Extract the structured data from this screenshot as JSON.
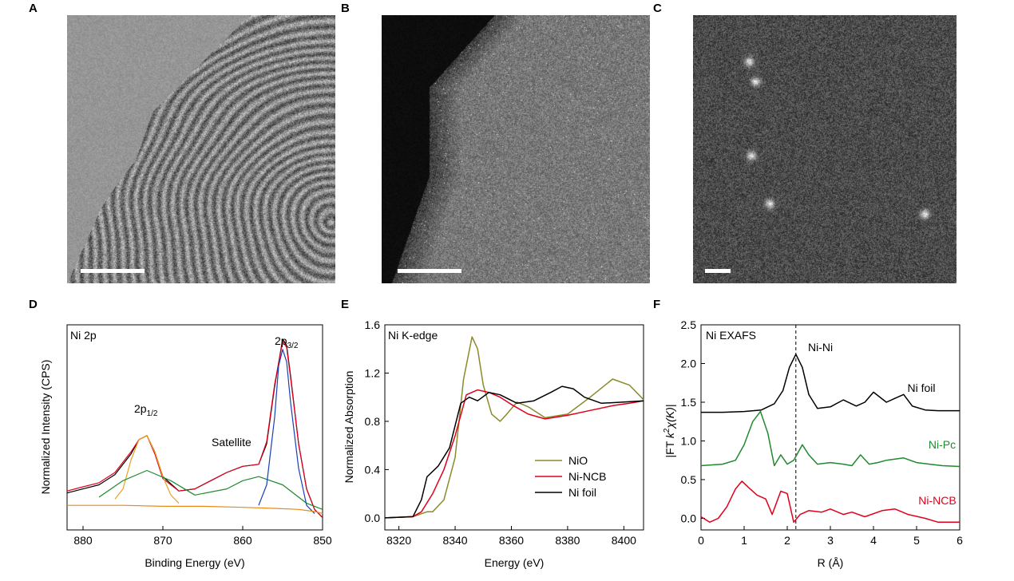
{
  "panels": {
    "A": {
      "letter": "A"
    },
    "B": {
      "letter": "B"
    },
    "C": {
      "letter": "C"
    },
    "D": {
      "letter": "D"
    },
    "E": {
      "letter": "E"
    },
    "F": {
      "letter": "F"
    }
  },
  "chart_data": [
    {
      "panel": "D",
      "type": "line",
      "xlabel": "Binding Energy (eV)",
      "ylabel": "Normalized Intensity (CPS)",
      "x_reversed": true,
      "xlim": [
        882,
        850
      ],
      "ylim": [
        0,
        1
      ],
      "xticks": [
        880,
        870,
        860,
        850
      ],
      "annotations": {
        "corner": "Ni 2p",
        "peak_half": "2p",
        "peak_half_sub": "1/2",
        "satellite": "Satellite",
        "peak_three_half": "2p",
        "peak_three_half_sub": "3/2"
      },
      "series": [
        {
          "role": "raw",
          "color": "#000000",
          "x": [
            882,
            880,
            878,
            876,
            874,
            873,
            872,
            871,
            870,
            868,
            866,
            864,
            862,
            860,
            858,
            857,
            856,
            855,
            854.5,
            854,
            853,
            852,
            851,
            850
          ],
          "y": [
            0.18,
            0.2,
            0.22,
            0.27,
            0.37,
            0.44,
            0.46,
            0.38,
            0.26,
            0.19,
            0.2,
            0.24,
            0.28,
            0.31,
            0.32,
            0.42,
            0.7,
            0.93,
            0.9,
            0.75,
            0.42,
            0.2,
            0.1,
            0.06
          ]
        },
        {
          "role": "envelope",
          "color": "#e0001b",
          "x": [
            882,
            880,
            878,
            876,
            874,
            873,
            872,
            871,
            870,
            868,
            866,
            864,
            862,
            860,
            858,
            857,
            856,
            855,
            854.5,
            854,
            853,
            852,
            851,
            850
          ],
          "y": [
            0.19,
            0.21,
            0.23,
            0.28,
            0.38,
            0.44,
            0.46,
            0.37,
            0.25,
            0.19,
            0.2,
            0.24,
            0.28,
            0.31,
            0.32,
            0.43,
            0.71,
            0.92,
            0.89,
            0.74,
            0.42,
            0.2,
            0.1,
            0.06
          ]
        },
        {
          "role": "2p1/2 component",
          "color": "#e8a227",
          "x": [
            876,
            875,
            874,
            873,
            872,
            871,
            870,
            869,
            868
          ],
          "y": [
            0.15,
            0.2,
            0.34,
            0.44,
            0.46,
            0.38,
            0.26,
            0.17,
            0.13
          ]
        },
        {
          "role": "satellite component",
          "color": "#1f8a2e",
          "x": [
            878,
            875,
            872,
            869,
            866,
            862,
            860,
            858,
            855,
            852,
            850
          ],
          "y": [
            0.16,
            0.24,
            0.29,
            0.24,
            0.17,
            0.2,
            0.24,
            0.26,
            0.22,
            0.13,
            0.1
          ]
        },
        {
          "role": "2p3/2 component",
          "color": "#1a3fb8",
          "x": [
            858,
            857,
            856,
            855.5,
            855,
            854.5,
            854,
            853,
            852,
            851
          ],
          "y": [
            0.12,
            0.22,
            0.55,
            0.8,
            0.88,
            0.82,
            0.62,
            0.3,
            0.12,
            0.08
          ]
        },
        {
          "role": "background",
          "color": "#e88a1a",
          "x": [
            882,
            875,
            870,
            865,
            860,
            856,
            853,
            851,
            850
          ],
          "y": [
            0.12,
            0.12,
            0.115,
            0.115,
            0.11,
            0.105,
            0.1,
            0.09,
            0.08
          ]
        }
      ]
    },
    {
      "panel": "E",
      "type": "line",
      "xlabel": "Energy (eV)",
      "ylabel": "Normalized Absorption",
      "xlim": [
        8315,
        8407
      ],
      "ylim": [
        -0.1,
        1.6
      ],
      "xticks": [
        8320,
        8340,
        8360,
        8380,
        8400
      ],
      "yticks": [
        0.0,
        0.4,
        0.8,
        1.2,
        1.6
      ],
      "annotations": {
        "corner": "Ni K-edge"
      },
      "series": [
        {
          "name": "NiO",
          "color": "#8a8a2a",
          "x": [
            8315,
            8325,
            8330,
            8332,
            8336,
            8340,
            8343,
            8346,
            8348,
            8350,
            8353,
            8356,
            8358,
            8362,
            8366,
            8372,
            8380,
            8388,
            8396,
            8402,
            8407
          ],
          "y": [
            0.0,
            0.01,
            0.05,
            0.05,
            0.15,
            0.5,
            1.15,
            1.5,
            1.4,
            1.1,
            0.86,
            0.8,
            0.85,
            0.96,
            0.92,
            0.83,
            0.86,
            1.0,
            1.15,
            1.1,
            0.98
          ]
        },
        {
          "name": "Ni-NCB",
          "color": "#e0001b",
          "x": [
            8315,
            8325,
            8328,
            8332,
            8336,
            8340,
            8344,
            8348,
            8352,
            8356,
            8360,
            8366,
            8372,
            8380,
            8388,
            8396,
            8402,
            8407
          ],
          "y": [
            0.0,
            0.01,
            0.05,
            0.2,
            0.4,
            0.68,
            1.02,
            1.06,
            1.04,
            1.0,
            0.94,
            0.86,
            0.82,
            0.85,
            0.89,
            0.93,
            0.95,
            0.97
          ]
        },
        {
          "name": "Ni foil",
          "color": "#000000",
          "x": [
            8315,
            8325,
            8328,
            8330,
            8334,
            8338,
            8342,
            8345,
            8348,
            8352,
            8356,
            8362,
            8368,
            8374,
            8378,
            8382,
            8386,
            8392,
            8400,
            8407
          ],
          "y": [
            0.0,
            0.01,
            0.15,
            0.34,
            0.43,
            0.58,
            0.95,
            1.0,
            0.97,
            1.04,
            1.02,
            0.95,
            0.97,
            1.04,
            1.09,
            1.07,
            1.0,
            0.95,
            0.96,
            0.97
          ]
        }
      ],
      "legend_placement": "bottom-right"
    },
    {
      "panel": "F",
      "type": "line",
      "xlabel": "R (Å)",
      "ylabel_prefix": "|FT ",
      "ylabel_k": "k",
      "ylabel_sup": "2",
      "ylabel_chi": "χ(K)|",
      "xlim": [
        0,
        6
      ],
      "ylim": [
        -0.15,
        2.5
      ],
      "xticks": [
        0,
        1,
        2,
        3,
        4,
        5,
        6
      ],
      "yticks": [
        0.0,
        0.5,
        1.0,
        1.5,
        2.0,
        2.5
      ],
      "annotations": {
        "corner": "Ni  EXAFS",
        "nini": "Ni-Ni"
      },
      "reference_line_x": 2.2,
      "series": [
        {
          "name": "Ni foil",
          "color": "#000000",
          "x": [
            0,
            0.5,
            1.0,
            1.4,
            1.7,
            1.9,
            2.05,
            2.2,
            2.35,
            2.5,
            2.7,
            3.0,
            3.3,
            3.6,
            3.8,
            4.0,
            4.3,
            4.5,
            4.7,
            4.9,
            5.2,
            5.5,
            6.0
          ],
          "y": [
            1.37,
            1.37,
            1.38,
            1.4,
            1.48,
            1.65,
            1.95,
            2.12,
            1.95,
            1.6,
            1.42,
            1.44,
            1.53,
            1.45,
            1.5,
            1.63,
            1.5,
            1.55,
            1.6,
            1.45,
            1.4,
            1.39,
            1.39
          ]
        },
        {
          "name": "Ni-Pc",
          "color": "#1f8a2e",
          "x": [
            0,
            0.5,
            0.8,
            1.0,
            1.2,
            1.38,
            1.55,
            1.7,
            1.85,
            2.0,
            2.15,
            2.35,
            2.5,
            2.7,
            3.0,
            3.3,
            3.5,
            3.7,
            3.9,
            4.1,
            4.3,
            4.7,
            5.0,
            5.3,
            5.6,
            6.0
          ],
          "y": [
            0.68,
            0.7,
            0.75,
            0.95,
            1.25,
            1.38,
            1.1,
            0.68,
            0.82,
            0.7,
            0.75,
            0.95,
            0.82,
            0.7,
            0.72,
            0.7,
            0.68,
            0.82,
            0.7,
            0.72,
            0.75,
            0.78,
            0.72,
            0.7,
            0.68,
            0.67
          ]
        },
        {
          "name": "Ni-NCB",
          "color": "#e0001b",
          "x": [
            0,
            0.2,
            0.4,
            0.6,
            0.8,
            0.95,
            1.1,
            1.3,
            1.5,
            1.65,
            1.85,
            2.0,
            2.15,
            2.3,
            2.5,
            2.8,
            3.0,
            3.3,
            3.5,
            3.8,
            4.2,
            4.5,
            4.8,
            5.2,
            5.5,
            6.0
          ],
          "y": [
            0.02,
            -0.05,
            0.0,
            0.15,
            0.38,
            0.48,
            0.4,
            0.3,
            0.25,
            0.05,
            0.35,
            0.32,
            -0.05,
            0.05,
            0.1,
            0.08,
            0.12,
            0.05,
            0.08,
            0.02,
            0.1,
            0.12,
            0.05,
            0.0,
            -0.05,
            -0.05
          ]
        }
      ]
    }
  ]
}
